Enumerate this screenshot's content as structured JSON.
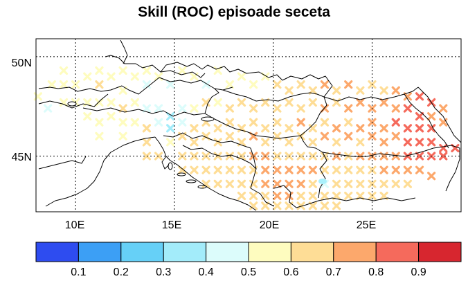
{
  "title": "Skill (ROC) episoade seceta",
  "map": {
    "lat_ticks": [
      "50N",
      "45N"
    ],
    "lon_ticks": [
      "10E",
      "15E",
      "20E",
      "25E"
    ],
    "extent": {
      "lon_min": 8,
      "lon_max": 29.5,
      "lat_min": 42.2,
      "lat_max": 50.9
    },
    "grid": "dotted",
    "marker": "x"
  },
  "colorbar": {
    "tick_labels": [
      "0.1",
      "0.2",
      "0.3",
      "0.4",
      "0.5",
      "0.6",
      "0.7",
      "0.8",
      "0.9"
    ],
    "colors": [
      "#2e4cf0",
      "#3c9ff5",
      "#66d0f7",
      "#a3ecfa",
      "#dcfcfb",
      "#fefcbf",
      "#fedd96",
      "#fca86c",
      "#f56a5c",
      "#d7262f"
    ]
  },
  "markers": [
    {
      "lon": 8.1,
      "lat": 48.0,
      "level": 5
    },
    {
      "lon": 8.8,
      "lat": 48.6,
      "level": 5
    },
    {
      "lon": 8.6,
      "lat": 47.4,
      "level": 4
    },
    {
      "lon": 9.4,
      "lat": 49.3,
      "level": 5
    },
    {
      "lon": 9.4,
      "lat": 48.6,
      "level": 5
    },
    {
      "lon": 10.0,
      "lat": 48.6,
      "level": 5
    },
    {
      "lon": 10.6,
      "lat": 49.0,
      "level": 5
    },
    {
      "lon": 11.2,
      "lat": 48.6,
      "level": 6
    },
    {
      "lon": 11.2,
      "lat": 49.3,
      "level": 5
    },
    {
      "lon": 11.8,
      "lat": 49.0,
      "level": 5
    },
    {
      "lon": 12.4,
      "lat": 49.3,
      "level": 5
    },
    {
      "lon": 12.4,
      "lat": 48.3,
      "level": 5
    },
    {
      "lon": 13.0,
      "lat": 49.0,
      "level": 5
    },
    {
      "lon": 13.6,
      "lat": 48.6,
      "level": 4
    },
    {
      "lon": 13.6,
      "lat": 49.3,
      "level": 5
    },
    {
      "lon": 14.2,
      "lat": 49.0,
      "level": 5
    },
    {
      "lon": 14.8,
      "lat": 48.6,
      "level": 4
    },
    {
      "lon": 15.4,
      "lat": 49.3,
      "level": 5
    },
    {
      "lon": 16.0,
      "lat": 49.0,
      "level": 5
    },
    {
      "lon": 16.6,
      "lat": 48.6,
      "level": 4
    },
    {
      "lon": 17.2,
      "lat": 49.3,
      "level": 5
    },
    {
      "lon": 17.8,
      "lat": 48.6,
      "level": 5
    },
    {
      "lon": 18.4,
      "lat": 49.0,
      "level": 5
    },
    {
      "lon": 19.0,
      "lat": 48.6,
      "level": 5
    },
    {
      "lon": 19.6,
      "lat": 49.0,
      "level": 5
    },
    {
      "lon": 20.2,
      "lat": 48.6,
      "level": 6
    },
    {
      "lon": 20.8,
      "lat": 48.3,
      "level": 6
    },
    {
      "lon": 21.4,
      "lat": 48.6,
      "level": 6
    },
    {
      "lon": 22.0,
      "lat": 48.3,
      "level": 6
    },
    {
      "lon": 22.6,
      "lat": 48.6,
      "level": 7
    },
    {
      "lon": 23.2,
      "lat": 48.3,
      "level": 6
    },
    {
      "lon": 23.8,
      "lat": 48.6,
      "level": 7
    },
    {
      "lon": 24.4,
      "lat": 48.3,
      "level": 6
    },
    {
      "lon": 25.0,
      "lat": 48.6,
      "level": 6
    },
    {
      "lon": 25.6,
      "lat": 48.3,
      "level": 6
    },
    {
      "lon": 26.2,
      "lat": 48.3,
      "level": 7
    },
    {
      "lon": 26.8,
      "lat": 48.0,
      "level": 7
    },
    {
      "lon": 27.4,
      "lat": 48.0,
      "level": 8
    },
    {
      "lon": 28.0,
      "lat": 47.7,
      "level": 8
    },
    {
      "lon": 28.6,
      "lat": 47.4,
      "level": 7
    },
    {
      "lon": 9.4,
      "lat": 47.7,
      "level": 5
    },
    {
      "lon": 10.0,
      "lat": 47.7,
      "level": 5
    },
    {
      "lon": 10.6,
      "lat": 47.7,
      "level": 5
    },
    {
      "lon": 11.2,
      "lat": 47.7,
      "level": 5
    },
    {
      "lon": 11.8,
      "lat": 47.7,
      "level": 5
    },
    {
      "lon": 12.4,
      "lat": 47.4,
      "level": 6
    },
    {
      "lon": 13.0,
      "lat": 47.7,
      "level": 5
    },
    {
      "lon": 13.6,
      "lat": 47.4,
      "level": 4
    },
    {
      "lon": 14.2,
      "lat": 47.4,
      "level": 4
    },
    {
      "lon": 14.8,
      "lat": 47.0,
      "level": 3
    },
    {
      "lon": 15.4,
      "lat": 47.4,
      "level": 4
    },
    {
      "lon": 16.0,
      "lat": 47.4,
      "level": 5
    },
    {
      "lon": 16.6,
      "lat": 47.7,
      "level": 6
    },
    {
      "lon": 17.2,
      "lat": 47.7,
      "level": 5
    },
    {
      "lon": 17.8,
      "lat": 47.4,
      "level": 6
    },
    {
      "lon": 18.4,
      "lat": 47.7,
      "level": 6
    },
    {
      "lon": 19.0,
      "lat": 47.4,
      "level": 6
    },
    {
      "lon": 19.6,
      "lat": 47.7,
      "level": 6
    },
    {
      "lon": 20.2,
      "lat": 47.4,
      "level": 6
    },
    {
      "lon": 20.8,
      "lat": 47.7,
      "level": 6
    },
    {
      "lon": 21.4,
      "lat": 47.4,
      "level": 6
    },
    {
      "lon": 22.0,
      "lat": 47.7,
      "level": 6
    },
    {
      "lon": 22.6,
      "lat": 47.4,
      "level": 7
    },
    {
      "lon": 23.2,
      "lat": 47.7,
      "level": 6
    },
    {
      "lon": 23.8,
      "lat": 47.4,
      "level": 7
    },
    {
      "lon": 24.4,
      "lat": 47.7,
      "level": 7
    },
    {
      "lon": 25.0,
      "lat": 47.4,
      "level": 7
    },
    {
      "lon": 25.6,
      "lat": 47.7,
      "level": 7
    },
    {
      "lon": 26.2,
      "lat": 47.4,
      "level": 7
    },
    {
      "lon": 26.8,
      "lat": 47.4,
      "level": 8
    },
    {
      "lon": 27.4,
      "lat": 47.0,
      "level": 8
    },
    {
      "lon": 28.0,
      "lat": 47.0,
      "level": 7
    },
    {
      "lon": 10.6,
      "lat": 47.0,
      "level": 5
    },
    {
      "lon": 11.2,
      "lat": 46.7,
      "level": 5
    },
    {
      "lon": 11.8,
      "lat": 47.0,
      "level": 5
    },
    {
      "lon": 12.4,
      "lat": 46.7,
      "level": 5
    },
    {
      "lon": 13.0,
      "lat": 46.7,
      "level": 5
    },
    {
      "lon": 13.6,
      "lat": 46.4,
      "level": 6
    },
    {
      "lon": 14.2,
      "lat": 46.7,
      "level": 4
    },
    {
      "lon": 14.8,
      "lat": 46.4,
      "level": 3
    },
    {
      "lon": 15.4,
      "lat": 46.7,
      "level": 4
    },
    {
      "lon": 16.0,
      "lat": 46.4,
      "level": 6
    },
    {
      "lon": 16.6,
      "lat": 46.7,
      "level": 6
    },
    {
      "lon": 17.2,
      "lat": 46.4,
      "level": 6
    },
    {
      "lon": 17.8,
      "lat": 46.7,
      "level": 6
    },
    {
      "lon": 18.4,
      "lat": 46.4,
      "level": 6
    },
    {
      "lon": 19.0,
      "lat": 46.7,
      "level": 6
    },
    {
      "lon": 19.6,
      "lat": 46.4,
      "level": 6
    },
    {
      "lon": 20.2,
      "lat": 46.7,
      "level": 6
    },
    {
      "lon": 20.8,
      "lat": 46.4,
      "level": 6
    },
    {
      "lon": 21.4,
      "lat": 46.7,
      "level": 7
    },
    {
      "lon": 22.0,
      "lat": 46.4,
      "level": 6
    },
    {
      "lon": 22.6,
      "lat": 46.7,
      "level": 6
    },
    {
      "lon": 23.2,
      "lat": 46.4,
      "level": 7
    },
    {
      "lon": 23.8,
      "lat": 46.7,
      "level": 6
    },
    {
      "lon": 24.4,
      "lat": 46.4,
      "level": 7
    },
    {
      "lon": 25.0,
      "lat": 46.7,
      "level": 7
    },
    {
      "lon": 25.6,
      "lat": 46.4,
      "level": 7
    },
    {
      "lon": 26.2,
      "lat": 46.7,
      "level": 8
    },
    {
      "lon": 26.8,
      "lat": 46.4,
      "level": 8
    },
    {
      "lon": 27.4,
      "lat": 46.4,
      "level": 8
    },
    {
      "lon": 28.0,
      "lat": 46.4,
      "level": 8
    },
    {
      "lon": 28.6,
      "lat": 46.7,
      "level": 7
    },
    {
      "lon": 11.2,
      "lat": 46.0,
      "level": 5
    },
    {
      "lon": 12.4,
      "lat": 46.0,
      "level": 5
    },
    {
      "lon": 13.6,
      "lat": 45.7,
      "level": 6
    },
    {
      "lon": 14.8,
      "lat": 45.7,
      "level": 5
    },
    {
      "lon": 15.4,
      "lat": 46.0,
      "level": 6
    },
    {
      "lon": 16.0,
      "lat": 45.7,
      "level": 6
    },
    {
      "lon": 16.6,
      "lat": 46.0,
      "level": 6
    },
    {
      "lon": 17.2,
      "lat": 45.7,
      "level": 6
    },
    {
      "lon": 17.8,
      "lat": 46.0,
      "level": 6
    },
    {
      "lon": 18.4,
      "lat": 45.7,
      "level": 6
    },
    {
      "lon": 19.0,
      "lat": 46.0,
      "level": 7
    },
    {
      "lon": 19.6,
      "lat": 45.7,
      "level": 6
    },
    {
      "lon": 20.2,
      "lat": 46.0,
      "level": 6
    },
    {
      "lon": 20.8,
      "lat": 45.7,
      "level": 6
    },
    {
      "lon": 21.4,
      "lat": 46.0,
      "level": 6
    },
    {
      "lon": 22.0,
      "lat": 45.7,
      "level": 6
    },
    {
      "lon": 22.6,
      "lat": 46.0,
      "level": 7
    },
    {
      "lon": 23.2,
      "lat": 45.7,
      "level": 6
    },
    {
      "lon": 23.8,
      "lat": 46.0,
      "level": 7
    },
    {
      "lon": 24.4,
      "lat": 45.7,
      "level": 6
    },
    {
      "lon": 25.0,
      "lat": 46.0,
      "level": 7
    },
    {
      "lon": 25.6,
      "lat": 45.7,
      "level": 7
    },
    {
      "lon": 26.2,
      "lat": 46.0,
      "level": 7
    },
    {
      "lon": 26.8,
      "lat": 45.7,
      "level": 8
    },
    {
      "lon": 27.4,
      "lat": 45.7,
      "level": 8
    },
    {
      "lon": 28.0,
      "lat": 45.7,
      "level": 8
    },
    {
      "lon": 28.6,
      "lat": 45.4,
      "level": 8
    },
    {
      "lon": 29.2,
      "lat": 45.4,
      "level": 8
    },
    {
      "lon": 13.6,
      "lat": 45.0,
      "level": 6
    },
    {
      "lon": 14.2,
      "lat": 45.0,
      "level": 6
    },
    {
      "lon": 15.4,
      "lat": 45.0,
      "level": 6
    },
    {
      "lon": 16.0,
      "lat": 45.0,
      "level": 6
    },
    {
      "lon": 16.6,
      "lat": 45.0,
      "level": 6
    },
    {
      "lon": 17.2,
      "lat": 45.0,
      "level": 6
    },
    {
      "lon": 17.8,
      "lat": 45.0,
      "level": 6
    },
    {
      "lon": 18.4,
      "lat": 45.0,
      "level": 6
    },
    {
      "lon": 19.0,
      "lat": 45.0,
      "level": 7
    },
    {
      "lon": 19.6,
      "lat": 45.0,
      "level": 7
    },
    {
      "lon": 20.2,
      "lat": 45.0,
      "level": 6
    },
    {
      "lon": 20.8,
      "lat": 45.0,
      "level": 6
    },
    {
      "lon": 21.4,
      "lat": 45.0,
      "level": 6
    },
    {
      "lon": 22.0,
      "lat": 45.0,
      "level": 6
    },
    {
      "lon": 22.6,
      "lat": 45.0,
      "level": 6
    },
    {
      "lon": 23.2,
      "lat": 45.0,
      "level": 7
    },
    {
      "lon": 23.8,
      "lat": 45.0,
      "level": 6
    },
    {
      "lon": 24.4,
      "lat": 45.0,
      "level": 7
    },
    {
      "lon": 25.0,
      "lat": 45.0,
      "level": 7
    },
    {
      "lon": 25.6,
      "lat": 45.0,
      "level": 7
    },
    {
      "lon": 26.2,
      "lat": 45.0,
      "level": 7
    },
    {
      "lon": 26.8,
      "lat": 45.0,
      "level": 8
    },
    {
      "lon": 27.4,
      "lat": 45.0,
      "level": 8
    },
    {
      "lon": 28.0,
      "lat": 45.0,
      "level": 8
    },
    {
      "lon": 28.6,
      "lat": 45.0,
      "level": 8
    },
    {
      "lon": 15.4,
      "lat": 44.3,
      "level": 6
    },
    {
      "lon": 16.0,
      "lat": 44.3,
      "level": 6
    },
    {
      "lon": 16.6,
      "lat": 44.3,
      "level": 6
    },
    {
      "lon": 17.2,
      "lat": 44.3,
      "level": 6
    },
    {
      "lon": 17.8,
      "lat": 44.3,
      "level": 6
    },
    {
      "lon": 18.4,
      "lat": 44.3,
      "level": 6
    },
    {
      "lon": 19.0,
      "lat": 44.3,
      "level": 6
    },
    {
      "lon": 19.6,
      "lat": 44.3,
      "level": 7
    },
    {
      "lon": 20.2,
      "lat": 44.3,
      "level": 7
    },
    {
      "lon": 20.8,
      "lat": 44.3,
      "level": 7
    },
    {
      "lon": 21.4,
      "lat": 44.3,
      "level": 7
    },
    {
      "lon": 22.0,
      "lat": 44.3,
      "level": 7
    },
    {
      "lon": 22.6,
      "lat": 44.3,
      "level": 6
    },
    {
      "lon": 23.2,
      "lat": 44.3,
      "level": 6
    },
    {
      "lon": 23.8,
      "lat": 44.3,
      "level": 6
    },
    {
      "lon": 24.4,
      "lat": 44.3,
      "level": 6
    },
    {
      "lon": 25.0,
      "lat": 44.3,
      "level": 6
    },
    {
      "lon": 25.6,
      "lat": 44.3,
      "level": 7
    },
    {
      "lon": 26.2,
      "lat": 44.3,
      "level": 7
    },
    {
      "lon": 26.8,
      "lat": 44.3,
      "level": 7
    },
    {
      "lon": 27.4,
      "lat": 44.3,
      "level": 7
    },
    {
      "lon": 28.0,
      "lat": 44.0,
      "level": 7
    },
    {
      "lon": 16.6,
      "lat": 43.6,
      "level": 6
    },
    {
      "lon": 17.2,
      "lat": 43.6,
      "level": 6
    },
    {
      "lon": 17.8,
      "lat": 43.6,
      "level": 6
    },
    {
      "lon": 18.4,
      "lat": 43.6,
      "level": 6
    },
    {
      "lon": 19.0,
      "lat": 43.6,
      "level": 6
    },
    {
      "lon": 19.6,
      "lat": 43.6,
      "level": 7
    },
    {
      "lon": 20.2,
      "lat": 43.6,
      "level": 7
    },
    {
      "lon": 20.8,
      "lat": 43.6,
      "level": 7
    },
    {
      "lon": 21.4,
      "lat": 43.6,
      "level": 7
    },
    {
      "lon": 22.0,
      "lat": 43.6,
      "level": 6
    },
    {
      "lon": 22.6,
      "lat": 43.6,
      "level": 4
    },
    {
      "lon": 23.2,
      "lat": 43.6,
      "level": 6
    },
    {
      "lon": 23.8,
      "lat": 43.6,
      "level": 6
    },
    {
      "lon": 24.4,
      "lat": 43.6,
      "level": 6
    },
    {
      "lon": 25.0,
      "lat": 43.6,
      "level": 6
    },
    {
      "lon": 25.6,
      "lat": 43.6,
      "level": 6
    },
    {
      "lon": 26.2,
      "lat": 43.6,
      "level": 6
    },
    {
      "lon": 26.8,
      "lat": 43.6,
      "level": 6
    },
    {
      "lon": 18.4,
      "lat": 43.0,
      "level": 6
    },
    {
      "lon": 19.0,
      "lat": 43.0,
      "level": 6
    },
    {
      "lon": 19.6,
      "lat": 43.0,
      "level": 6
    },
    {
      "lon": 20.2,
      "lat": 43.0,
      "level": 7
    },
    {
      "lon": 20.8,
      "lat": 43.0,
      "level": 7
    },
    {
      "lon": 21.4,
      "lat": 43.0,
      "level": 6
    },
    {
      "lon": 22.0,
      "lat": 43.0,
      "level": 6
    },
    {
      "lon": 22.6,
      "lat": 43.0,
      "level": 6
    },
    {
      "lon": 23.2,
      "lat": 43.0,
      "level": 6
    },
    {
      "lon": 23.8,
      "lat": 43.0,
      "level": 6
    },
    {
      "lon": 24.4,
      "lat": 43.0,
      "level": 6
    },
    {
      "lon": 25.0,
      "lat": 43.0,
      "level": 6
    },
    {
      "lon": 25.6,
      "lat": 43.0,
      "level": 6
    },
    {
      "lon": 19.0,
      "lat": 42.5,
      "level": 6
    },
    {
      "lon": 19.6,
      "lat": 42.5,
      "level": 6
    },
    {
      "lon": 20.2,
      "lat": 42.5,
      "level": 6
    },
    {
      "lon": 20.8,
      "lat": 42.5,
      "level": 6
    },
    {
      "lon": 21.4,
      "lat": 42.5,
      "level": 6
    },
    {
      "lon": 22.0,
      "lat": 42.5,
      "level": 6
    },
    {
      "lon": 22.6,
      "lat": 42.5,
      "level": 6
    },
    {
      "lon": 23.2,
      "lat": 42.5,
      "level": 6
    }
  ]
}
